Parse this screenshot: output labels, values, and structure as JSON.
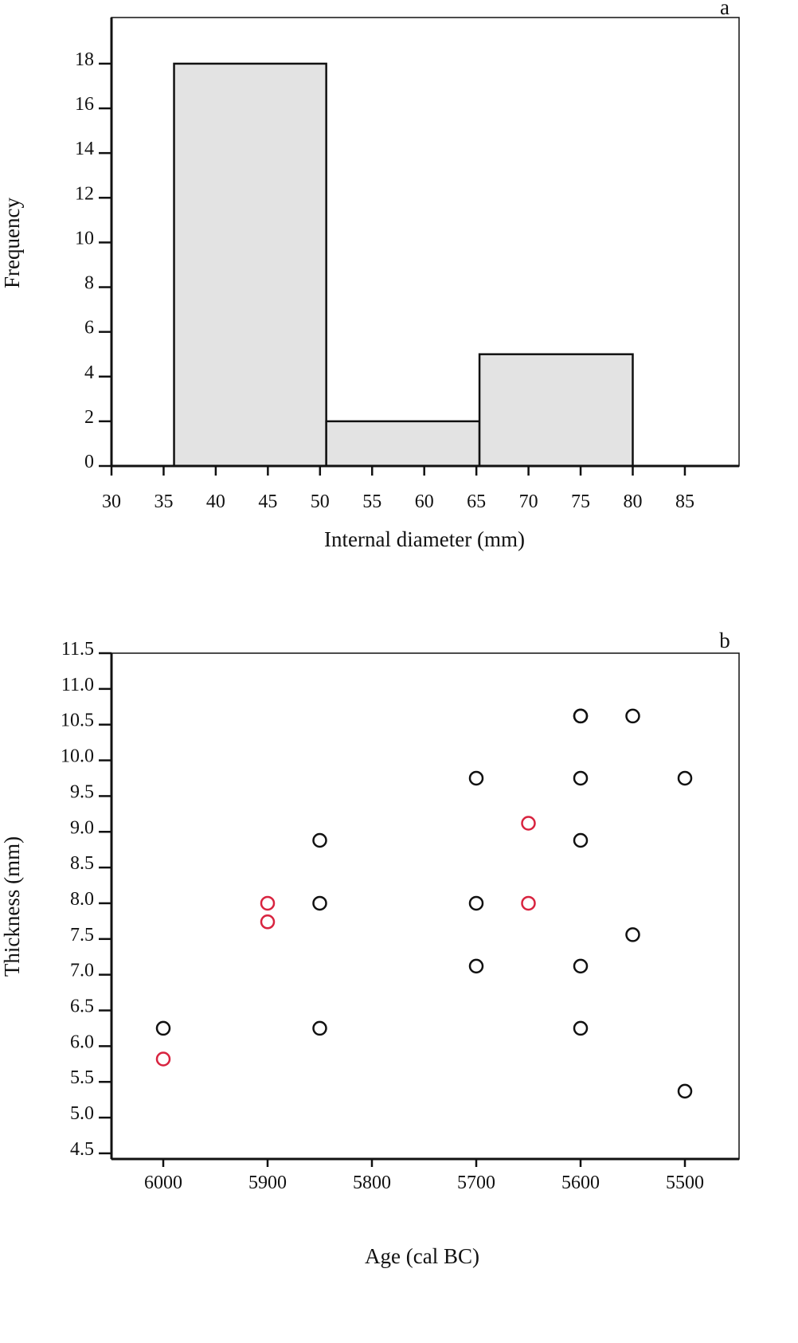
{
  "chart_data": [
    {
      "type": "bar",
      "panel_label": "a",
      "title": "",
      "xlabel": "Internal diameter (mm)",
      "ylabel": "Frequency",
      "xlim": [
        30,
        90.2
      ],
      "ylim": [
        0,
        20
      ],
      "xticks": [
        "30",
        "35",
        "40",
        "45",
        "50",
        "55",
        "60",
        "65",
        "70",
        "75",
        "80",
        "85"
      ],
      "yticks": [
        "0",
        "2",
        "4",
        "6",
        "8",
        "10",
        "12",
        "14",
        "16",
        "18"
      ],
      "bins": [
        {
          "from": 36,
          "to": 50.6,
          "value": 18
        },
        {
          "from": 50.6,
          "to": 65.3,
          "value": 2
        },
        {
          "from": 65.3,
          "to": 80,
          "value": 5
        }
      ],
      "fill_color": "#e3e3e3",
      "grid": false
    },
    {
      "type": "scatter",
      "panel_label": "b",
      "title": "",
      "xlabel": "Age (cal BC)",
      "ylabel": "Thickness (mm)",
      "xlim": [
        6050,
        5448
      ],
      "ylim": [
        4.4,
        11.5
      ],
      "xticks": [
        "6000",
        "5900",
        "5800",
        "5700",
        "5600",
        "5500"
      ],
      "yticks": [
        "4.5",
        "5.0",
        "5.5",
        "6.0",
        "6.5",
        "7.0",
        "7.5",
        "8.0",
        "8.5",
        "9.0",
        "9.5",
        "10.0",
        "10.5",
        "11.0",
        "11.5"
      ],
      "grid": false,
      "series": [
        {
          "name": "black",
          "color": "#111111",
          "points": [
            [
              6000,
              6.25
            ],
            [
              5850,
              8.88
            ],
            [
              5850,
              8.0
            ],
            [
              5850,
              6.25
            ],
            [
              5700,
              9.75
            ],
            [
              5700,
              8.0
            ],
            [
              5700,
              7.12
            ],
            [
              5600,
              10.62
            ],
            [
              5600,
              10.62
            ],
            [
              5600,
              9.75
            ],
            [
              5600,
              8.88
            ],
            [
              5600,
              7.12
            ],
            [
              5600,
              6.25
            ],
            [
              5550,
              10.62
            ],
            [
              5550,
              7.56
            ],
            [
              5500,
              9.75
            ],
            [
              5500,
              5.37
            ]
          ]
        },
        {
          "name": "red",
          "color": "#d8233f",
          "points": [
            [
              6000,
              5.82
            ],
            [
              5900,
              8.0
            ],
            [
              5900,
              7.74
            ],
            [
              5650,
              9.12
            ],
            [
              5650,
              8.0
            ]
          ]
        }
      ]
    }
  ]
}
